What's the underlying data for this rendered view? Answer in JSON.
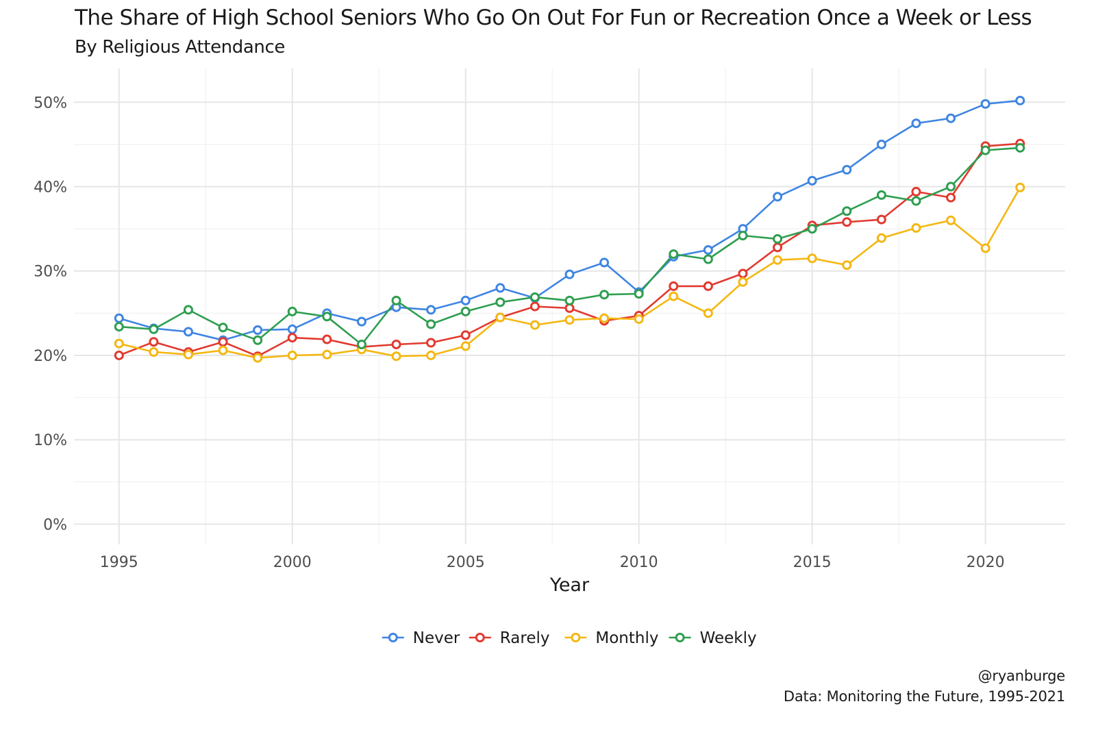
{
  "chart_data": {
    "type": "line",
    "title": "The Share of High School Seniors Who Go On Out For Fun or Recreation Once a Week or Less",
    "subtitle": "By Religious Attendance",
    "xlabel": "Year",
    "ylabel": "",
    "xlim": [
      1993.7,
      2022.3
    ],
    "ylim": [
      -0.024,
      0.54
    ],
    "x_ticks": [
      1995,
      2000,
      2005,
      2010,
      2015,
      2020
    ],
    "y_ticks": [
      0,
      0.1,
      0.2,
      0.3,
      0.4,
      0.5
    ],
    "y_tick_labels": [
      "0%",
      "10%",
      "20%",
      "30%",
      "40%",
      "50%"
    ],
    "grid": true,
    "legend_position": "bottom",
    "x": [
      1995,
      1996,
      1997,
      1998,
      1999,
      2000,
      2001,
      2002,
      2003,
      2004,
      2005,
      2006,
      2007,
      2008,
      2009,
      2010,
      2011,
      2012,
      2013,
      2014,
      2015,
      2016,
      2017,
      2018,
      2019,
      2020,
      2021
    ],
    "series": [
      {
        "name": "Never",
        "color": "#3f85e2",
        "values": [
          0.244,
          0.232,
          0.228,
          0.218,
          0.23,
          0.231,
          0.25,
          0.24,
          0.257,
          0.254,
          0.265,
          0.28,
          0.268,
          0.296,
          0.31,
          0.275,
          0.317,
          0.325,
          0.35,
          0.388,
          0.407,
          0.42,
          0.45,
          0.475,
          0.481,
          0.498,
          0.502
        ]
      },
      {
        "name": "Rarely",
        "color": "#e2392f",
        "values": [
          0.2,
          0.216,
          0.204,
          0.216,
          0.199,
          0.221,
          0.219,
          0.21,
          0.213,
          0.215,
          0.224,
          0.245,
          0.258,
          0.256,
          0.241,
          0.247,
          0.282,
          0.282,
          0.297,
          0.328,
          0.354,
          0.358,
          0.361,
          0.394,
          0.387,
          0.448,
          0.451
        ]
      },
      {
        "name": "Monthly",
        "color": "#f4b712",
        "values": [
          0.214,
          0.204,
          0.201,
          0.206,
          0.197,
          0.2,
          0.201,
          0.207,
          0.199,
          0.2,
          0.211,
          0.245,
          0.236,
          0.242,
          0.244,
          0.243,
          0.27,
          0.25,
          0.287,
          0.313,
          0.315,
          0.307,
          0.339,
          0.351,
          0.36,
          0.327,
          0.399
        ]
      },
      {
        "name": "Weekly",
        "color": "#2e9e4f",
        "values": [
          0.234,
          0.231,
          0.254,
          0.233,
          0.218,
          0.252,
          0.246,
          0.213,
          0.265,
          0.237,
          0.252,
          0.263,
          0.269,
          0.265,
          0.272,
          0.273,
          0.32,
          0.314,
          0.342,
          0.338,
          0.35,
          0.371,
          0.39,
          0.383,
          0.4,
          0.443,
          0.446
        ]
      }
    ],
    "caption": [
      "@ryanburge",
      "Data: Monitoring the Future, 1995-2021"
    ]
  }
}
